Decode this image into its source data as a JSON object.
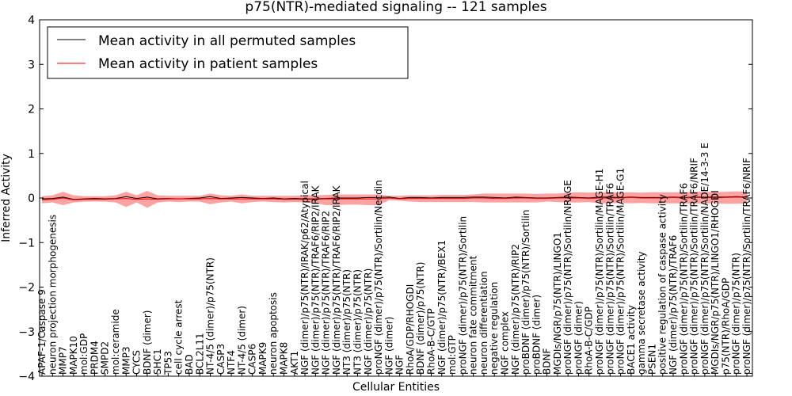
{
  "chart_data": {
    "type": "line",
    "title": "p75(NTR)-mediated signaling -- 121 samples",
    "xlabel": "Cellular Entities",
    "ylabel": "Inferred Activity",
    "ylim": [
      -4,
      4
    ],
    "yticks": [
      -4,
      -3,
      -2,
      -1,
      0,
      1,
      2,
      3,
      4
    ],
    "grid": false,
    "legend_position": "top-left",
    "categories": [
      "APAF-1/Caspase 9",
      "neuron projection morphogenesis",
      "MMP7",
      "MAPK10",
      "mol:GDP",
      "PRDM4",
      "SMPD2",
      "mol:ceramide",
      "MMP3",
      "CYCS",
      "BDNF (dimer)",
      "SHC1",
      "TP53",
      "cell cycle arrest",
      "BAD",
      "BCL2L11",
      "NT-4/5 (dimer)/p75(NTR)",
      "CASP3",
      "NTF4",
      "NT-4/5 (dimer)",
      "CASP6",
      "MAPK9",
      "neuron apoptosis",
      "MAPK8",
      "AKT1",
      "NGF (dimer)/p75(NTR)/IRAK/p62/Atypical",
      "NGF (dimer)/p75(NTR)/TRAF6/RIP2/IRAK",
      "NGF (dimer)/p75(NTR)/TRAF6/RIP2",
      "NGF (dimer)/p75(NTR)/TRAF6/RIP2/IRAK",
      "NT3 (dimer)/p75(NTR)",
      "NT3 (dimer)/p75(NTR)",
      "NGF (dimer)/p75(NTR)",
      "proNGF (dimer)/p75(NTR)/Sortilin/Necdin",
      "NGF (dimer)",
      "NGF",
      "RhoA/GDP/RHOGDI",
      "BDNF (dimer)/p75(NTR)",
      "RhoA-B-C/GTP",
      "NGF (dimer)/p75(NTR)/BEX1",
      "mol:GTP",
      "proNGF (dimer)/p75(NTR)/Sortilin",
      "neuron fate commitment",
      "neuron differentiation",
      "negative regulation",
      "NGF complex",
      "NGF (dimer)/p75(NTR)/RIP2",
      "proBDNF (dimer)/p75(NTR)/Sortilin",
      "proBDNF (dimer)",
      "BDNF",
      "MGDIs/NGR/p75(NTR)/LINGO1",
      "proNGF (dimer)/p75(NTR)/Sortilin/NRAGE",
      "proNGF (dimer)",
      "RhoA-B-C/GDP",
      "proNGF (dimer)/p75(NTR)/Sortilin/MAGE-H1",
      "proNGF (dimer)/p75(NTR)/Sortilin/TRAF6",
      "proNGF (dimer)/p75(NTR)/Sortilin/MAGE-G1",
      "BACE1 activity",
      "gamma secretase activity",
      "PSEN1",
      "positive regulation of caspase activity",
      "NGF (dimer)/p75(NTR)/TRAF6",
      "proNGF (dimer)/p75(NTR)/Sortilin/TRAF6",
      "proNGF (dimer)/p75(NTR)/Sortilin/TRAF6/NRIF",
      "proNGF (dimer)/p75(NTR)/Sortilin/NADE/14-3-3 E",
      "MGDIs/NGR/p75(NTR)/LINGO1/RHOGDI",
      "p75(NTR)/RhoA/GDP",
      "proNGF (dimer)/p75(NTR)",
      "proNGF (dimer)/p75(NTR)/Sortilin/TRAF6/NRIF"
    ],
    "series": [
      {
        "name": "Mean activity in all permuted samples",
        "color": "#000000",
        "values": [
          -0.02,
          -0.01,
          0.02,
          -0.03,
          -0.02,
          -0.01,
          -0.02,
          -0.01,
          0.03,
          -0.01,
          0.02,
          -0.02,
          -0.01,
          -0.02,
          -0.01,
          0.0,
          0.03,
          -0.01,
          0.0,
          0.01,
          0.0,
          -0.01,
          0.0,
          -0.02,
          -0.01,
          -0.02,
          -0.02,
          -0.01,
          0.0,
          0.0,
          0.0,
          0.01,
          0.01,
          0.02,
          -0.01,
          0.01,
          0.01,
          0.0,
          0.01,
          0.01,
          0.01,
          0.02,
          0.02,
          0.01,
          0.0,
          0.02,
          0.01,
          0.0,
          0.0,
          0.01,
          0.02,
          0.01,
          0.0,
          0.02,
          0.02,
          0.01,
          0.02,
          0.01,
          0.01,
          0.01,
          0.02,
          0.01,
          0.02,
          0.02,
          0.02,
          0.02,
          0.03,
          0.02
        ]
      },
      {
        "name": "Mean activity in patient samples",
        "color": "#ff0000",
        "values": [
          -0.04,
          -0.03,
          0.0,
          -0.04,
          -0.03,
          -0.03,
          -0.03,
          -0.02,
          -0.01,
          -0.03,
          -0.02,
          -0.03,
          -0.02,
          -0.02,
          -0.02,
          -0.02,
          -0.01,
          -0.02,
          -0.02,
          -0.02,
          -0.02,
          -0.02,
          -0.02,
          -0.03,
          -0.03,
          -0.03,
          -0.03,
          -0.02,
          -0.02,
          -0.02,
          -0.02,
          -0.02,
          -0.02,
          0.0,
          -0.02,
          -0.01,
          -0.01,
          -0.01,
          -0.01,
          -0.01,
          -0.01,
          0.0,
          0.0,
          -0.01,
          -0.01,
          0.0,
          0.0,
          -0.01,
          -0.01,
          0.0,
          0.0,
          0.0,
          -0.01,
          0.0,
          0.0,
          0.0,
          0.01,
          0.0,
          0.0,
          0.0,
          0.01,
          0.0,
          0.01,
          0.01,
          0.0,
          0.01,
          0.02,
          0.01
        ]
      }
    ],
    "band": {
      "color": "#ff5555",
      "lower": [
        -0.12,
        -0.1,
        -0.16,
        -0.1,
        -0.08,
        -0.08,
        -0.08,
        -0.1,
        -0.2,
        -0.1,
        -0.22,
        -0.1,
        -0.08,
        -0.09,
        -0.08,
        -0.08,
        -0.14,
        -0.1,
        -0.08,
        -0.12,
        -0.09,
        -0.08,
        -0.09,
        -0.1,
        -0.09,
        -0.1,
        -0.12,
        -0.16,
        -0.16,
        -0.15,
        -0.15,
        -0.16,
        -0.16,
        -0.05,
        -0.06,
        -0.08,
        -0.09,
        -0.09,
        -0.09,
        -0.09,
        -0.09,
        -0.09,
        -0.1,
        -0.1,
        -0.1,
        -0.1,
        -0.1,
        -0.1,
        -0.08,
        -0.09,
        -0.1,
        -0.1,
        -0.09,
        -0.12,
        -0.12,
        -0.11,
        -0.12,
        -0.11,
        -0.12,
        -0.12,
        -0.12,
        -0.12,
        -0.13,
        -0.12,
        -0.12,
        -0.13,
        -0.13,
        -0.12
      ],
      "upper": [
        0.04,
        0.06,
        0.14,
        0.06,
        0.04,
        0.04,
        0.04,
        0.06,
        0.14,
        0.06,
        0.16,
        0.06,
        0.05,
        0.05,
        0.05,
        0.05,
        0.1,
        0.06,
        0.05,
        0.08,
        0.05,
        0.05,
        0.05,
        0.05,
        0.05,
        0.06,
        0.06,
        0.07,
        0.08,
        0.08,
        0.08,
        0.08,
        0.08,
        0.05,
        0.05,
        0.06,
        0.06,
        0.06,
        0.07,
        0.07,
        0.07,
        0.08,
        0.1,
        0.1,
        0.1,
        0.1,
        0.1,
        0.09,
        0.1,
        0.1,
        0.12,
        0.13,
        0.12,
        0.13,
        0.13,
        0.12,
        0.13,
        0.12,
        0.13,
        0.13,
        0.13,
        0.13,
        0.14,
        0.14,
        0.13,
        0.14,
        0.15,
        0.14
      ]
    }
  }
}
